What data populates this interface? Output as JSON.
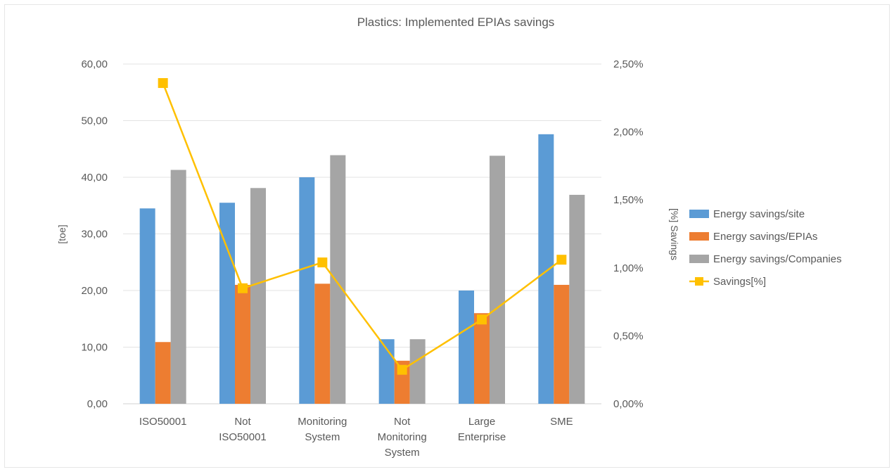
{
  "chart_data": {
    "type": "bar",
    "title": "Plastics: Implemented EPIAs savings",
    "ylabel": "[toe]",
    "y2label": "[%] Savings",
    "ylim": [
      0,
      60
    ],
    "y2lim": [
      0,
      0.025
    ],
    "yticks": [
      "0,00",
      "10,00",
      "20,00",
      "30,00",
      "40,00",
      "50,00",
      "60,00"
    ],
    "y2ticks": [
      "0,00%",
      "0,50%",
      "1,00%",
      "1,50%",
      "2,00%",
      "2,50%"
    ],
    "categories": [
      [
        "ISO50001"
      ],
      [
        "Not",
        "ISO50001"
      ],
      [
        "Monitoring",
        "System"
      ],
      [
        "Not",
        "Monitoring",
        "System"
      ],
      [
        "Large",
        "Enterprise"
      ],
      [
        "SME"
      ]
    ],
    "series": [
      {
        "name": "Energy savings/site",
        "type": "bar",
        "color": "#5b9bd5",
        "axis": "left",
        "values": [
          34.5,
          35.5,
          40.0,
          11.4,
          20.0,
          47.6
        ]
      },
      {
        "name": "Energy savings/EPIAs",
        "type": "bar",
        "color": "#ed7d31",
        "axis": "left",
        "values": [
          10.9,
          21.0,
          21.2,
          7.6,
          16.0,
          21.0
        ]
      },
      {
        "name": "Energy savings/Companies",
        "type": "bar",
        "color": "#a5a5a5",
        "axis": "left",
        "values": [
          41.3,
          38.1,
          43.9,
          11.4,
          43.8,
          36.9
        ]
      },
      {
        "name": "Savings[%]",
        "type": "line",
        "color": "#ffc000",
        "axis": "right",
        "values": [
          0.0236,
          0.0085,
          0.0104,
          0.0025,
          0.0062,
          0.0106
        ]
      }
    ],
    "grid": true,
    "legend": "right"
  }
}
